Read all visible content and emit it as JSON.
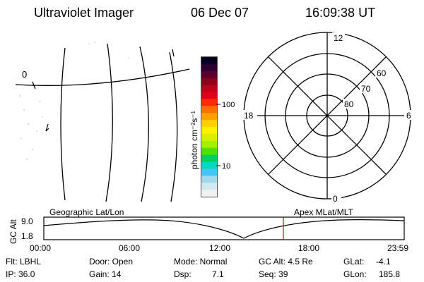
{
  "header": {
    "instrument": "Ultraviolet Imager",
    "date": "06 Dec 07",
    "time": "16:09:38 UT"
  },
  "geo_panel": {
    "grid_label": "0"
  },
  "colorbar": {
    "unit_label": "photon cm⁻²s⁻¹",
    "tick_100": "100",
    "tick_10": "10",
    "colors": [
      "#060020",
      "#2a0030",
      "#5a0030",
      "#8c0018",
      "#c00018",
      "#e0001a",
      "#ff2a00",
      "#ff7000",
      "#ffa000",
      "#ffd000",
      "#fff000",
      "#d8f000",
      "#a0f000",
      "#50e000",
      "#00d060",
      "#00d8c0",
      "#40c8f0",
      "#a0d8f0",
      "#d0e8f0",
      "#f0f0f0"
    ]
  },
  "polar": {
    "label_12": "12",
    "label_18": "18",
    "label_6": "6",
    "label_0": "0",
    "label_60": "60",
    "label_70": "70",
    "label_80": "80"
  },
  "timeline": {
    "left_label": "Geographic Lat/Lon",
    "right_label": "Apex MLat/MLT",
    "axis_title": "GC Alt",
    "y_top": "9.0",
    "y_bottom": "1.8",
    "time_ticks": [
      "00:00",
      "06:00",
      "12:00",
      "18:00",
      "23:59"
    ],
    "marker_color": "#cc0000"
  },
  "footer": {
    "flt": "Flt: LBHL",
    "ip": "IP: 36.0",
    "door": "Door: Open",
    "gain": "Gain: 14",
    "mode": "Mode: Normal",
    "dsp_label": "Dsp:",
    "dsp_value": "7.1",
    "gcalt": "GC Alt: 4.5 Re",
    "seq": "Seq: 39",
    "glat_label": "GLat:",
    "glat_value": "-4.1",
    "glon_label": "GLon:",
    "glon_value": "185.8"
  }
}
